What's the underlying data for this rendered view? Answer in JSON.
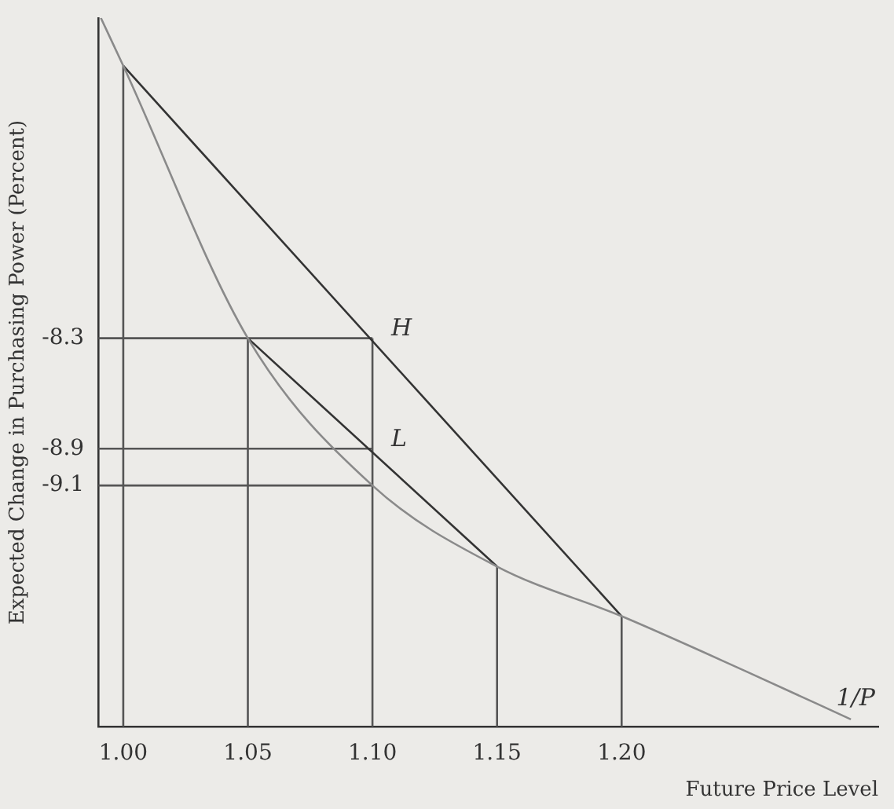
{
  "chart_data": {
    "type": "line",
    "xlabel": "Future Price Level",
    "ylabel": "Expected Change in Purchasing Power (Percent)",
    "xlim": [
      0.99,
      1.303
    ],
    "ylim": [
      -10.41,
      -6.56
    ],
    "xticks": [
      {
        "value": 1,
        "label": "1.00"
      },
      1.05,
      {
        "value": 1.1,
        "label": "1.10"
      },
      1.15,
      {
        "value": 1.2,
        "label": "1.20"
      }
    ],
    "yticks": [
      -8.3,
      -8.9,
      -9.1
    ],
    "grid": false,
    "legend": false,
    "marker": "none",
    "line_style": "solid",
    "series": [
      {
        "color": "#8a8a8a",
        "x": [
          0.991,
          1.0,
          1.05,
          1.1,
          1.15,
          1.2,
          1.25,
          1.292
        ],
        "values": [
          -6.56,
          -6.82,
          -8.3,
          -9.1,
          -9.54,
          -9.81,
          -10.11,
          -10.37
        ]
      },
      {
        "color": "#333333",
        "x": [
          1.0,
          1.2
        ],
        "values": [
          -6.82,
          -9.81
        ]
      },
      {
        "color": "#333333",
        "x": [
          1.05,
          1.15
        ],
        "values": [
          -8.3,
          -9.54
        ]
      },
      {
        "color": "#555555",
        "x": [
          1.0,
          1.0
        ],
        "values": [
          -10.41,
          -6.82
        ]
      },
      {
        "color": "#555555",
        "x": [
          1.05,
          1.05
        ],
        "values": [
          -10.41,
          -8.3
        ]
      },
      {
        "color": "#555555",
        "x": [
          1.1,
          1.1
        ],
        "values": [
          -10.41,
          -8.3
        ]
      },
      {
        "color": "#555555",
        "x": [
          1.15,
          1.15
        ],
        "values": [
          -10.41,
          -9.54
        ]
      },
      {
        "color": "#555555",
        "x": [
          1.2,
          1.2
        ],
        "values": [
          -10.41,
          -9.81
        ]
      },
      {
        "color": "#555555",
        "x": [
          0.99,
          1.1
        ],
        "values": [
          -8.3,
          -8.3
        ]
      },
      {
        "color": "#555555",
        "x": [
          0.99,
          1.1
        ],
        "values": [
          -8.9,
          -8.9
        ]
      },
      {
        "color": "#555555",
        "x": [
          0.99,
          1.1
        ],
        "values": [
          -9.1,
          -9.1
        ]
      }
    ],
    "annotations": [
      {
        "text": "H",
        "x": 1.1,
        "y": -8.3
      },
      {
        "text": "L",
        "x": 1.1,
        "y": -8.9
      },
      "1/P"
    ]
  }
}
